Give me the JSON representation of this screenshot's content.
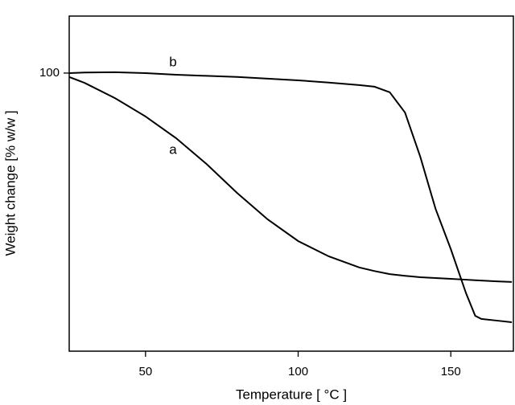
{
  "chart_data": {
    "type": "line",
    "xlabel": "Temperature [ °C ]",
    "ylabel": "Weight change [% w/w ]",
    "x": [
      25,
      30,
      40,
      50,
      60,
      70,
      80,
      90,
      100,
      110,
      120,
      125,
      130,
      135,
      140,
      145,
      150,
      155,
      158,
      160,
      165,
      170
    ],
    "series": [
      {
        "color": "#000000",
        "values": [
          98.6,
          96.5,
          91,
          84.4,
          76.6,
          67.3,
          56.9,
          47.4,
          39.6,
          34.1,
          30.1,
          28.8,
          27.7,
          27.1,
          26.6,
          26.3,
          26,
          25.7,
          25.5,
          25.4,
          25.1,
          24.9
        ]
      },
      {
        "color": "#000000",
        "values": [
          100,
          100.2,
          100.3,
          100,
          99.4,
          99,
          98.6,
          98,
          97.4,
          96.6,
          95.7,
          95.1,
          93.1,
          85.8,
          69.9,
          51.2,
          36.7,
          20.8,
          12.7,
          11.6,
          11,
          10.4
        ]
      }
    ],
    "annotations": [
      {
        "text": "a",
        "x": 59,
        "y": 72.3
      },
      {
        "text": "b",
        "x": 59,
        "y": 103.8
      }
    ],
    "xlim": [
      25,
      170.5
    ],
    "ylim": [
      0,
      120.5
    ],
    "xticks": [
      50,
      100,
      150
    ],
    "yticks": [
      100
    ]
  }
}
